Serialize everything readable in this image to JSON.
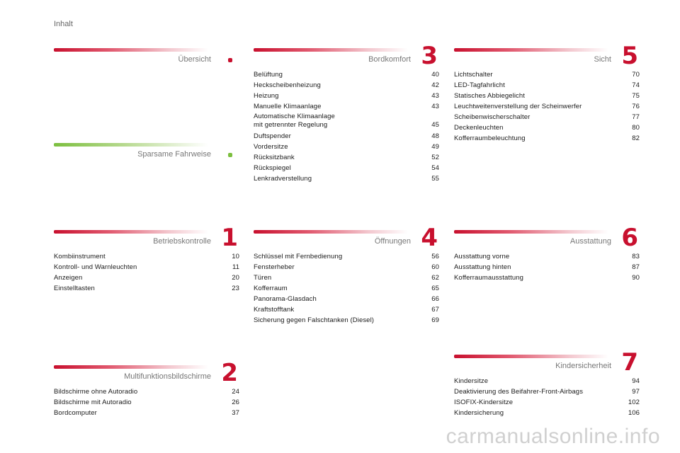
{
  "header": {
    "title": "Inhalt"
  },
  "watermark": "carmanualsonline.info",
  "colors": {
    "accent_red": "#c8102e",
    "accent_green": "#7cbf3f"
  },
  "sections": {
    "uebersicht": {
      "title": "Übersicht",
      "entries": []
    },
    "sparsam": {
      "title": "Sparsame Fahrweise",
      "entries": []
    },
    "bordkomfort": {
      "number": "3",
      "title": "Bordkomfort",
      "entries": [
        {
          "label": "Belüftung",
          "page": "40"
        },
        {
          "label": "Heckscheibenheizung",
          "page": "42"
        },
        {
          "label": "Heizung",
          "page": "43"
        },
        {
          "label": "Manuelle Klimaanlage",
          "page": "43"
        },
        {
          "label": "Automatische Klimaanlage\n   mit getrennter Regelung",
          "page": "45"
        },
        {
          "label": "Duftspender",
          "page": "48"
        },
        {
          "label": "Vordersitze",
          "page": "49"
        },
        {
          "label": "Rücksitzbank",
          "page": "52"
        },
        {
          "label": "Rückspiegel",
          "page": "54"
        },
        {
          "label": "Lenkradverstellung",
          "page": "55"
        }
      ]
    },
    "sicht": {
      "number": "5",
      "title": "Sicht",
      "entries": [
        {
          "label": "Lichtschalter",
          "page": "70"
        },
        {
          "label": "LED-Tagfahrlicht",
          "page": "74"
        },
        {
          "label": "Statisches Abbiegelicht",
          "page": "75"
        },
        {
          "label": "Leuchtweitenverstellung der Scheinwerfer",
          "page": "76"
        },
        {
          "label": "Scheibenwischerschalter",
          "page": "77"
        },
        {
          "label": "Deckenleuchten",
          "page": "80"
        },
        {
          "label": "Kofferraumbeleuchtung",
          "page": "82"
        }
      ]
    },
    "betrieb": {
      "number": "1",
      "title": "Betriebskontrolle",
      "entries": [
        {
          "label": "Kombiinstrument",
          "page": "10"
        },
        {
          "label": "Kontroll- und Warnleuchten",
          "page": "11"
        },
        {
          "label": "Anzeigen",
          "page": "20"
        },
        {
          "label": "Einstelltasten",
          "page": "23"
        }
      ]
    },
    "oeffnungen": {
      "number": "4",
      "title": "Öffnungen",
      "entries": [
        {
          "label": "Schlüssel mit Fernbedienung",
          "page": "56"
        },
        {
          "label": "Fensterheber",
          "page": "60"
        },
        {
          "label": "Türen",
          "page": "62"
        },
        {
          "label": "Kofferraum",
          "page": "65"
        },
        {
          "label": "Panorama-Glasdach",
          "page": "66"
        },
        {
          "label": "Kraftstofftank",
          "page": "67"
        },
        {
          "label": "Sicherung gegen Falschtanken (Diesel)",
          "page": "69"
        }
      ]
    },
    "ausstattung": {
      "number": "6",
      "title": "Ausstattung",
      "entries": [
        {
          "label": "Ausstattung vorne",
          "page": "83"
        },
        {
          "label": "Ausstattung hinten",
          "page": "87"
        },
        {
          "label": "Kofferraumausstattung",
          "page": "90"
        }
      ]
    },
    "multifunktion": {
      "number": "2",
      "title": "Multifunktionsbildschirme",
      "entries": [
        {
          "label": "Bildschirme ohne Autoradio",
          "page": "24"
        },
        {
          "label": "Bildschirme mit Autoradio",
          "page": "26"
        },
        {
          "label": "Bordcomputer",
          "page": "37"
        }
      ]
    },
    "kinder": {
      "number": "7",
      "title": "Kindersicherheit",
      "entries": [
        {
          "label": "Kindersitze",
          "page": "94"
        },
        {
          "label": "Deaktivierung des Beifahrer-Front-Airbags",
          "page": "97"
        },
        {
          "label": "ISOFIX-Kindersitze",
          "page": "102"
        },
        {
          "label": "Kindersicherung",
          "page": "106"
        }
      ]
    }
  }
}
